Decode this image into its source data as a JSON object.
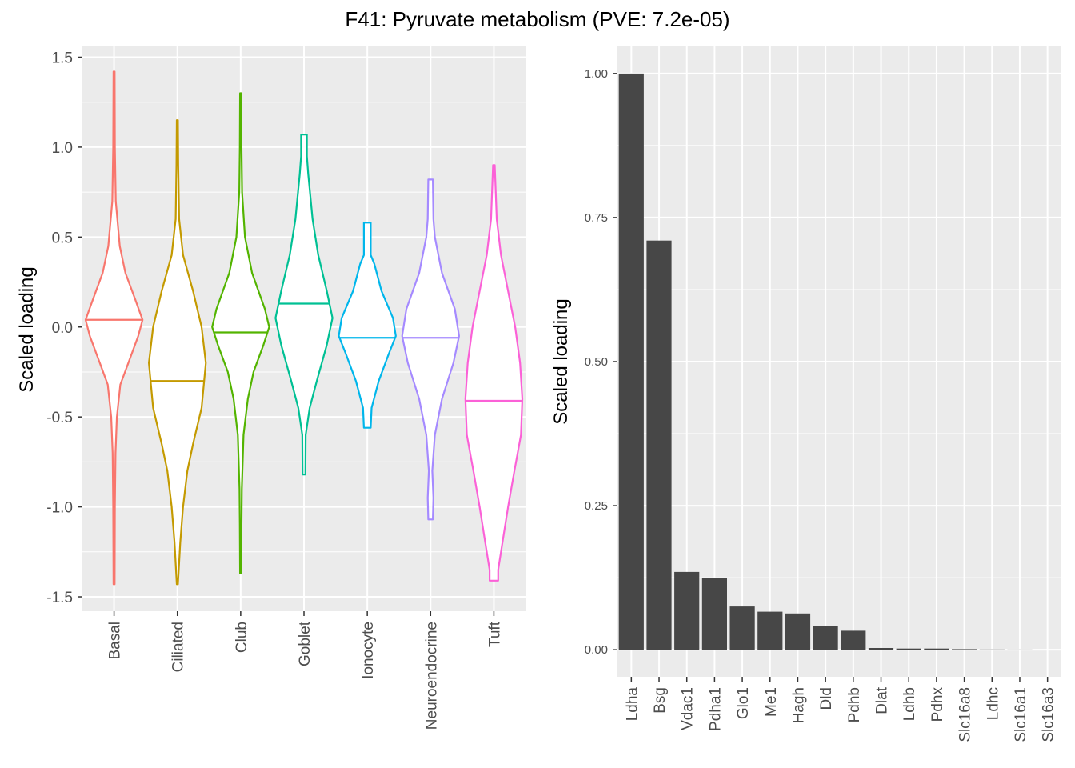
{
  "title": "F41: Pyruvate metabolism (PVE: 7.2e-05)",
  "chart_data": [
    {
      "type": "violin",
      "ylabel": "Scaled loading",
      "xlabel": "",
      "ylim": [
        -1.58,
        1.56
      ],
      "yticks": [
        1.5,
        1.0,
        0.5,
        0.0,
        -0.5,
        -1.0,
        -1.5
      ],
      "ytick_labels": [
        "1.5",
        "1.0",
        "0.5",
        "0.0",
        "-0.5",
        "-1.0",
        "-1.5"
      ],
      "grid": true,
      "categories": [
        "Basal",
        "Ciliated",
        "Club",
        "Goblet",
        "Ionocyte",
        "Neuroendocrine",
        "Tuft"
      ],
      "series": [
        {
          "category": "Basal",
          "color": "#F8766D",
          "min": -1.43,
          "max": 1.42,
          "median": 0.04,
          "profile": [
            [
              1.42,
              0.02
            ],
            [
              1.0,
              0.03
            ],
            [
              0.7,
              0.06
            ],
            [
              0.45,
              0.2
            ],
            [
              0.3,
              0.4
            ],
            [
              0.15,
              0.75
            ],
            [
              0.04,
              1.0
            ],
            [
              -0.05,
              0.85
            ],
            [
              -0.2,
              0.5
            ],
            [
              -0.32,
              0.22
            ],
            [
              -0.5,
              0.1
            ],
            [
              -0.7,
              0.05
            ],
            [
              -1.0,
              0.03
            ],
            [
              -1.43,
              0.02
            ]
          ]
        },
        {
          "category": "Ciliated",
          "color": "#C49A00",
          "min": -1.43,
          "max": 1.15,
          "median": -0.3,
          "profile": [
            [
              1.15,
              0.02
            ],
            [
              0.9,
              0.03
            ],
            [
              0.6,
              0.06
            ],
            [
              0.4,
              0.2
            ],
            [
              0.2,
              0.55
            ],
            [
              0.0,
              0.85
            ],
            [
              -0.2,
              1.0
            ],
            [
              -0.45,
              0.85
            ],
            [
              -0.65,
              0.55
            ],
            [
              -0.8,
              0.35
            ],
            [
              -1.0,
              0.2
            ],
            [
              -1.2,
              0.1
            ],
            [
              -1.43,
              0.02
            ]
          ]
        },
        {
          "category": "Club",
          "color": "#53B400",
          "min": -1.37,
          "max": 1.3,
          "median": -0.03,
          "profile": [
            [
              1.3,
              0.02
            ],
            [
              1.0,
              0.03
            ],
            [
              0.75,
              0.05
            ],
            [
              0.5,
              0.15
            ],
            [
              0.3,
              0.4
            ],
            [
              0.1,
              0.85
            ],
            [
              0.0,
              1.0
            ],
            [
              -0.1,
              0.8
            ],
            [
              -0.25,
              0.45
            ],
            [
              -0.4,
              0.25
            ],
            [
              -0.6,
              0.1
            ],
            [
              -0.9,
              0.04
            ],
            [
              -1.1,
              0.03
            ],
            [
              -1.37,
              0.02
            ]
          ]
        },
        {
          "category": "Goblet",
          "color": "#00C094",
          "min": -0.82,
          "max": 1.07,
          "median": 0.13,
          "profile": [
            [
              1.07,
              0.1
            ],
            [
              0.95,
              0.1
            ],
            [
              0.85,
              0.15
            ],
            [
              0.6,
              0.3
            ],
            [
              0.4,
              0.5
            ],
            [
              0.2,
              0.8
            ],
            [
              0.05,
              1.0
            ],
            [
              -0.1,
              0.8
            ],
            [
              -0.3,
              0.45
            ],
            [
              -0.45,
              0.2
            ],
            [
              -0.6,
              0.06
            ],
            [
              -0.82,
              0.05
            ]
          ]
        },
        {
          "category": "Ionocyte",
          "color": "#00B6EB",
          "min": -0.56,
          "max": 0.58,
          "median": -0.06,
          "profile": [
            [
              0.58,
              0.12
            ],
            [
              0.4,
              0.12
            ],
            [
              0.35,
              0.25
            ],
            [
              0.2,
              0.5
            ],
            [
              0.05,
              0.9
            ],
            [
              -0.05,
              1.0
            ],
            [
              -0.15,
              0.75
            ],
            [
              -0.3,
              0.4
            ],
            [
              -0.45,
              0.15
            ],
            [
              -0.56,
              0.12
            ]
          ]
        },
        {
          "category": "Neuroendocrine",
          "color": "#A58AFF",
          "min": -1.07,
          "max": 0.82,
          "median": -0.06,
          "profile": [
            [
              0.82,
              0.08
            ],
            [
              0.6,
              0.1
            ],
            [
              0.5,
              0.15
            ],
            [
              0.3,
              0.4
            ],
            [
              0.1,
              0.85
            ],
            [
              -0.05,
              1.0
            ],
            [
              -0.2,
              0.8
            ],
            [
              -0.4,
              0.4
            ],
            [
              -0.6,
              0.15
            ],
            [
              -0.8,
              0.06
            ],
            [
              -0.95,
              0.1
            ],
            [
              -1.07,
              0.08
            ]
          ]
        },
        {
          "category": "Tuft",
          "color": "#FB61D7",
          "min": -1.41,
          "max": 0.9,
          "median": -0.41,
          "profile": [
            [
              0.9,
              0.03
            ],
            [
              0.6,
              0.1
            ],
            [
              0.4,
              0.25
            ],
            [
              0.2,
              0.5
            ],
            [
              0.0,
              0.75
            ],
            [
              -0.2,
              0.92
            ],
            [
              -0.4,
              1.0
            ],
            [
              -0.6,
              0.95
            ],
            [
              -0.8,
              0.72
            ],
            [
              -1.0,
              0.5
            ],
            [
              -1.2,
              0.3
            ],
            [
              -1.35,
              0.15
            ],
            [
              -1.41,
              0.15
            ]
          ]
        }
      ]
    },
    {
      "type": "bar",
      "ylabel": "Scaled loading",
      "xlabel": "",
      "ylim": [
        -0.047,
        1.047
      ],
      "yticks": [
        1.0,
        0.75,
        0.5,
        0.25,
        0.0
      ],
      "ytick_labels": [
        "1.00",
        "0.75",
        "0.50",
        "0.25",
        "0.00"
      ],
      "grid": true,
      "bar_color": "#474747",
      "categories": [
        "Ldha",
        "Bsg",
        "Vdac1",
        "Pdha1",
        "Glo1",
        "Me1",
        "Hagh",
        "Dld",
        "Pdhb",
        "Dlat",
        "Ldhb",
        "Pdhx",
        "Slc16a8",
        "Ldhc",
        "Slc16a1",
        "Slc16a3"
      ],
      "values": [
        1.0,
        0.71,
        0.135,
        0.124,
        0.075,
        0.066,
        0.063,
        0.041,
        0.033,
        0.003,
        0.002,
        0.002,
        0.001,
        0.0005,
        0.0003,
        0.0002
      ]
    }
  ]
}
